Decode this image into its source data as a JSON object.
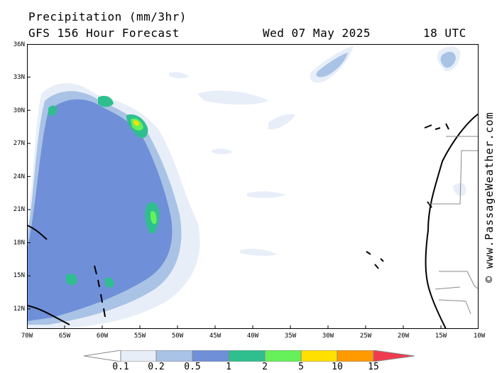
{
  "header": {
    "title": "Precipitation (mm/3hr)",
    "subtitle": "GFS 156 Hour Forecast",
    "valid_date": "Wed 07 May 2025",
    "valid_time": "18 UTC"
  },
  "map": {
    "lat_labels": [
      "36N",
      "33N",
      "30N",
      "27N",
      "24N",
      "21N",
      "18N",
      "15N",
      "12N"
    ],
    "lon_labels": [
      "70W",
      "65W",
      "60W",
      "55W",
      "50W",
      "45W",
      "40W",
      "35W",
      "30W",
      "25W",
      "20W",
      "15W",
      "10W"
    ],
    "credit": "© www.PassageWeather.com"
  },
  "legend": {
    "labels": [
      "0.1",
      "0.2",
      "0.5",
      "1",
      "2",
      "5",
      "10",
      "15"
    ],
    "colors": [
      "#ffffff",
      "#e8eef8",
      "#a9c3e6",
      "#6f8fd8",
      "#2fbf8f",
      "#66f05a",
      "#ffe000",
      "#ff9a00",
      "#f03a50"
    ],
    "unit": "mm/3hr"
  }
}
